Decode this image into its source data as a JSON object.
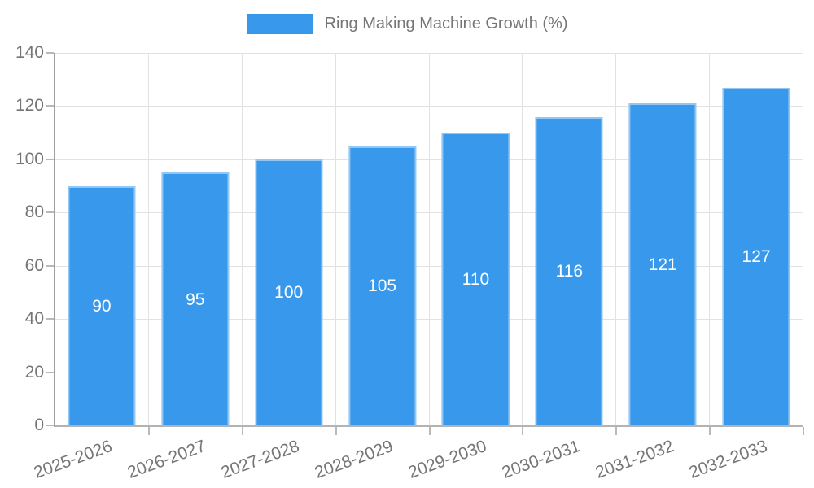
{
  "legend": {
    "label": "Ring Making Machine Growth (%)",
    "swatch_color": "#3899ec"
  },
  "chart_data": {
    "type": "bar",
    "title": "Ring Making Machine Growth (%)",
    "categories": [
      "2025-2026",
      "2026-2027",
      "2027-2028",
      "2028-2029",
      "2029-2030",
      "2030-2031",
      "2031-2032",
      "2032-2033"
    ],
    "values": [
      90,
      95,
      100,
      105,
      110,
      116,
      121,
      127
    ],
    "bar_value_labels": [
      "90",
      "95",
      "100",
      "105",
      "110",
      "116",
      "121",
      "127"
    ],
    "xlabel": "",
    "ylabel": "",
    "ylim": [
      0,
      140
    ],
    "y_ticks": [
      0,
      20,
      40,
      60,
      80,
      100,
      120,
      140
    ],
    "grid": true,
    "legend_position": "top-center",
    "bar_color": "#3899ec",
    "bar_label_color": "#ffffff",
    "axis_text_color": "#757575",
    "gridline_color": "#e2e2e2"
  }
}
